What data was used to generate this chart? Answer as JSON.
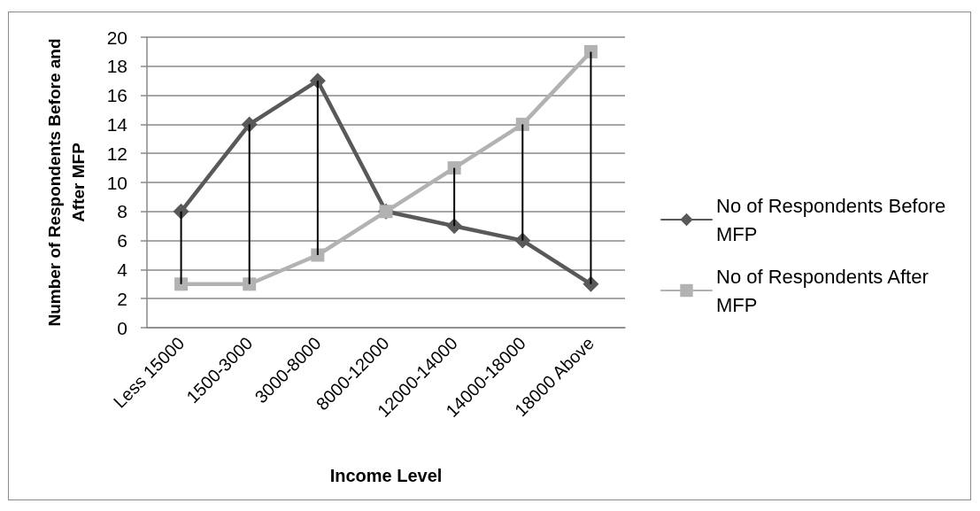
{
  "chart_data": {
    "type": "line",
    "xlabel": "Income Level",
    "ylabel": "Number of Respondents Before and After MFP",
    "categories": [
      "Less 15000",
      "1500-3000",
      "3000-8000",
      "8000-12000",
      "12000-14000",
      "14000-18000",
      "18000 Above"
    ],
    "series": [
      {
        "name": "No of Respondents Before MFP",
        "color": "#595959",
        "marker": "diamond",
        "values": [
          8,
          14,
          17,
          8,
          7,
          6,
          3
        ]
      },
      {
        "name": "No of Respondents After MFP",
        "color": "#b2b2b2",
        "marker": "square",
        "values": [
          3,
          3,
          5,
          8,
          11,
          14,
          19
        ]
      },
      {
        "type": "bar",
        "color": "#000000",
        "base": [
          3,
          3,
          5,
          null,
          7,
          6,
          3
        ],
        "values": [
          5,
          11,
          12,
          null,
          4,
          8,
          16
        ]
      }
    ],
    "ylim": [
      0,
      20
    ],
    "yticks": [
      0,
      2,
      4,
      6,
      8,
      10,
      12,
      14,
      16,
      18,
      20
    ],
    "grid": "y",
    "legend": "right",
    "line_style": "solid"
  }
}
